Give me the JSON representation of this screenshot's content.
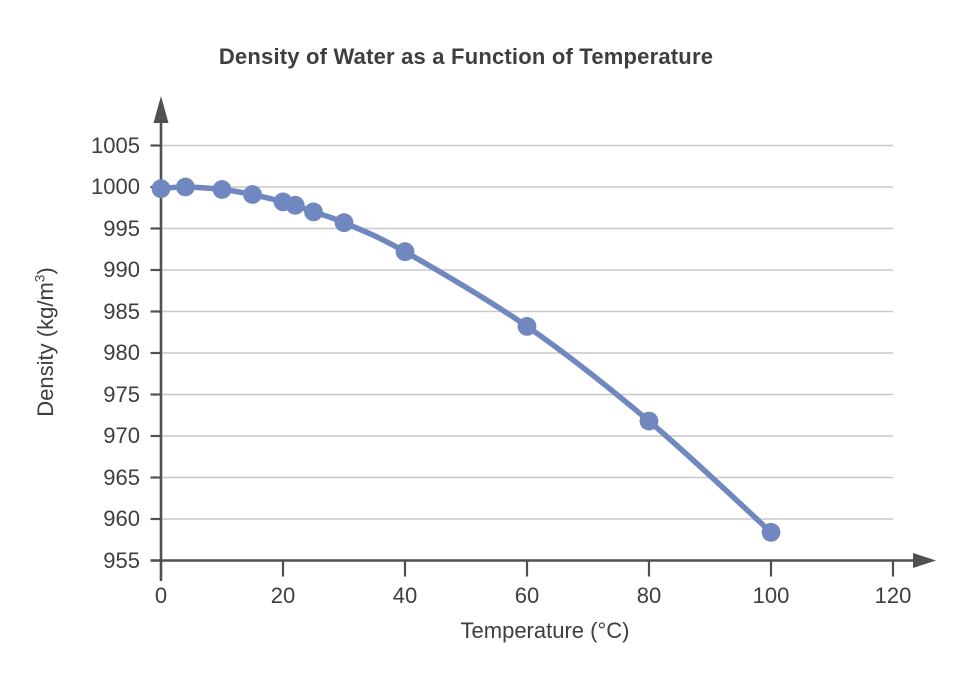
{
  "page": {
    "background": "#ffffff"
  },
  "chart_data": {
    "type": "line",
    "title": "Density of Water as a Function of Temperature",
    "xlabel": "Temperature (°C)",
    "ylabel": "Density (kg/m³)",
    "ylabel_parts": {
      "prefix": "Density (kg/m",
      "superscript": "3",
      "suffix": ")"
    },
    "x": [
      0,
      4,
      10,
      15,
      20,
      22,
      25,
      30,
      40,
      60,
      80,
      100
    ],
    "y": [
      999.8,
      1000.0,
      999.7,
      999.1,
      998.2,
      997.8,
      997.0,
      995.7,
      992.2,
      983.2,
      971.8,
      958.4
    ],
    "x_ticks": [
      "0",
      "20",
      "40",
      "60",
      "80",
      "100",
      "120"
    ],
    "x_tick_values": [
      0,
      20,
      40,
      60,
      80,
      100,
      120
    ],
    "y_ticks": [
      "1005",
      "1000",
      "995",
      "990",
      "985",
      "980",
      "975",
      "970",
      "965",
      "960",
      "955"
    ],
    "y_tick_values": [
      1005,
      1000,
      995,
      990,
      985,
      980,
      975,
      970,
      965,
      960,
      955
    ],
    "xlim": [
      0,
      120
    ],
    "ylim": [
      955,
      1005
    ],
    "grid": "horizontal",
    "legend": "none",
    "marker": "circle",
    "colors": {
      "series": "#7187c0",
      "grid": "#c9c9c9",
      "axis": "#505052",
      "text": "#3e3e40"
    }
  }
}
